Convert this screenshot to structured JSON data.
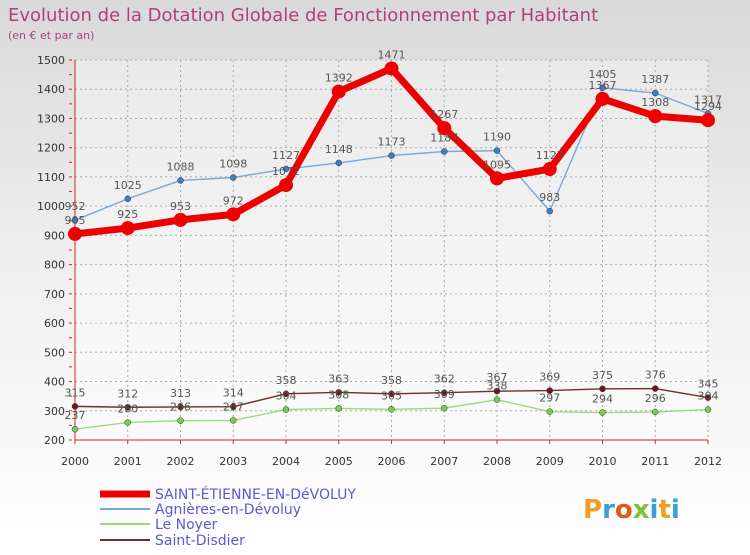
{
  "chart_data": {
    "type": "line",
    "title": "Evolution de la Dotation Globale de Fonctionnement par Habitant",
    "subtitle": "(en € et par an)",
    "xlabel": "",
    "ylabel": "",
    "x": [
      "2000",
      "2001",
      "2002",
      "2003",
      "2004",
      "2005",
      "2006",
      "2007",
      "2008",
      "2009",
      "2010",
      "2011",
      "2012"
    ],
    "ylim": [
      200,
      1500
    ],
    "yticks": [
      200,
      300,
      400,
      500,
      600,
      700,
      800,
      900,
      1000,
      1100,
      1200,
      1300,
      1400,
      1500
    ],
    "grid": true,
    "legend_position": "bottom-left",
    "series": [
      {
        "name": "SAINT-ÉTIENNE-EN-DéVOLUY",
        "color": "#ee0000",
        "values": [
          905,
          925,
          953,
          972,
          1072,
          1392,
          1471,
          1267,
          1095,
          1127,
          1367,
          1308,
          1294
        ]
      },
      {
        "name": "Agnières-en-Dévoluy",
        "color": "#7aa8d8",
        "values": [
          952,
          1025,
          1088,
          1098,
          1127,
          1148,
          1173,
          1187,
          1190,
          983,
          1405,
          1387,
          1317
        ]
      },
      {
        "name": "Le Noyer",
        "color": "#99dd77",
        "values": [
          237,
          260,
          266,
          267,
          304,
          308,
          305,
          309,
          338,
          297,
          294,
          296,
          304
        ]
      },
      {
        "name": "Saint-Disdier",
        "color": "#7a2a2a",
        "values": [
          315,
          312,
          313,
          314,
          358,
          363,
          358,
          362,
          367,
          369,
          375,
          376,
          345
        ]
      }
    ]
  },
  "brand": {
    "text": "Proxiti"
  }
}
